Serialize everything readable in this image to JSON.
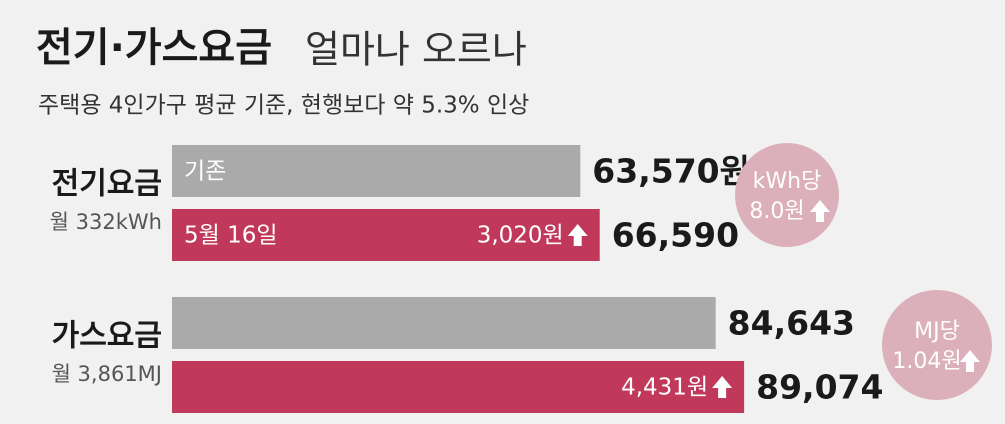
{
  "chart_data": {
    "type": "bar",
    "orientation": "horizontal",
    "title": "전기·가스요금",
    "title_suffix": "얼마나 오르나",
    "subtitle": "주택용 4인가구 평균 기준, 현행보다 약 5.3% 인상",
    "categories": [
      "전기요금",
      "가스요금"
    ],
    "category_notes": [
      "월 332kWh",
      "월 3,861MJ"
    ],
    "series": [
      {
        "name": "기존",
        "color": "#aaaaaa",
        "values": [
          63570,
          84643
        ],
        "value_labels": [
          "63,570원",
          "84,643"
        ]
      },
      {
        "name": "5월 16일",
        "color": "#c0395a",
        "values": [
          66590,
          89074
        ],
        "value_labels": [
          "66,590",
          "89,074"
        ]
      }
    ],
    "increase": {
      "values": [
        3020,
        4431
      ],
      "value_labels": [
        "3,020원",
        "4,431원"
      ]
    },
    "unit_price_notes": [
      [
        "kWh당",
        "8.0원"
      ],
      [
        "MJ당",
        "1.04원"
      ]
    ]
  }
}
